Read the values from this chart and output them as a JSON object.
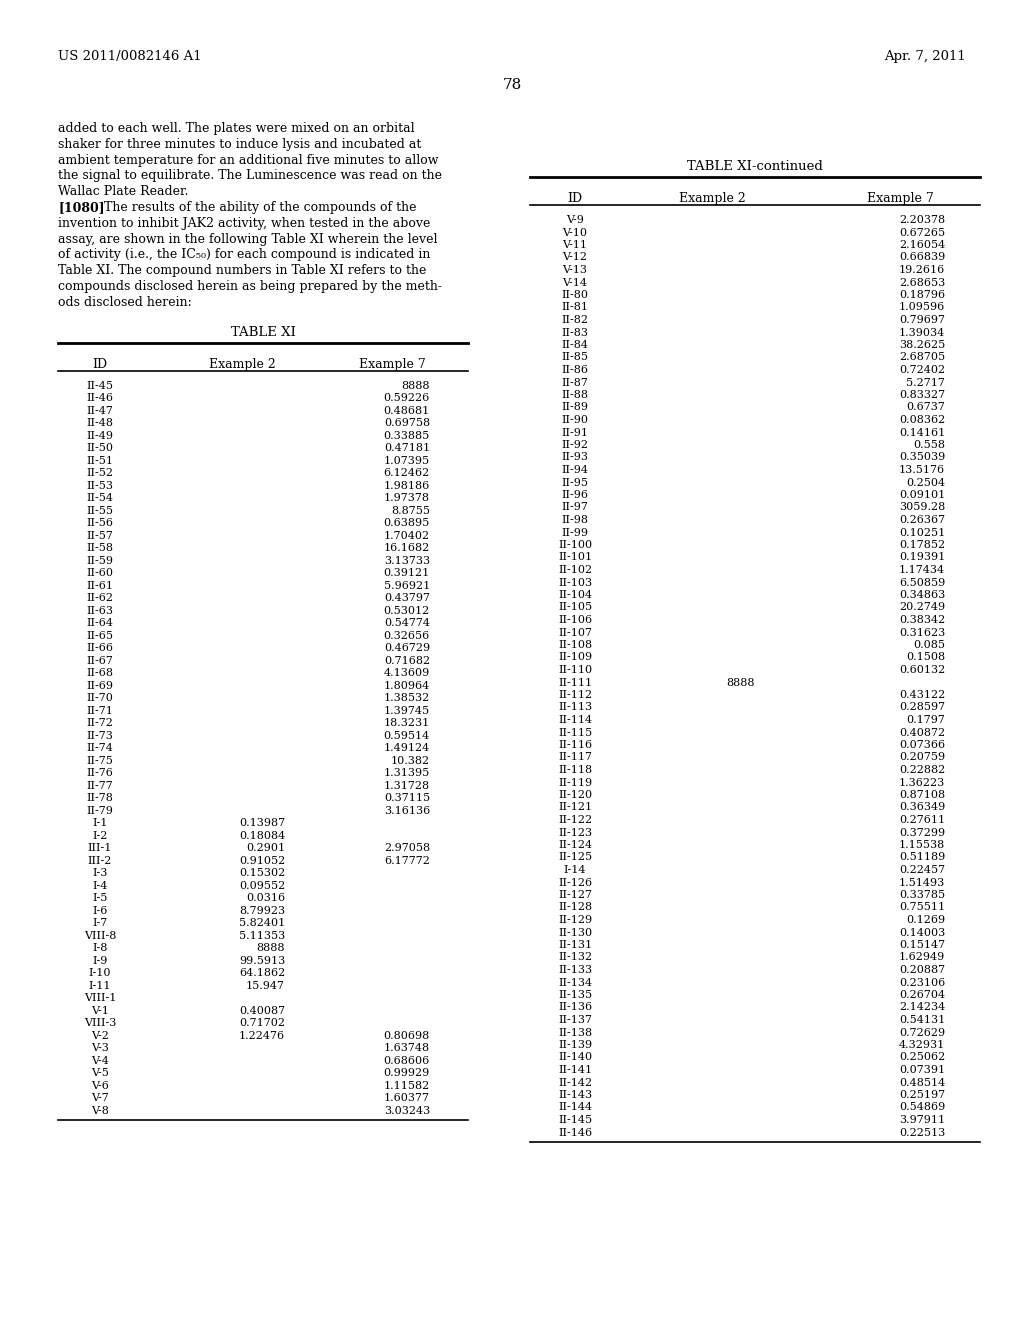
{
  "header_left": "US 2011/0082146 A1",
  "header_right": "Apr. 7, 2011",
  "page_number": "78",
  "body_text": [
    "added to each well. The plates were mixed on an orbital",
    "shaker for three minutes to induce lysis and incubated at",
    "ambient temperature for an additional five minutes to allow",
    "the signal to equilibrate. The Luminescence was read on the",
    "Wallac Plate Reader.",
    "[1080]    The results of the ability of the compounds of the",
    "invention to inhibit JAK2 activity, when tested in the above",
    "assay, are shown in the following Table XI wherein the level",
    "of activity (i.e., the IC₅₀) for each compound is indicated in",
    "Table XI. The compound numbers in Table XI refers to the",
    "compounds disclosed herein as being prepared by the meth-",
    "ods disclosed herein:"
  ],
  "table_title_left": "TABLE XI",
  "table_title_right": "TABLE XI-continued",
  "table_headers": [
    "ID",
    "Example 2",
    "Example 7"
  ],
  "table_left": [
    [
      "II-45",
      "",
      "8888"
    ],
    [
      "II-46",
      "",
      "0.59226"
    ],
    [
      "II-47",
      "",
      "0.48681"
    ],
    [
      "II-48",
      "",
      "0.69758"
    ],
    [
      "II-49",
      "",
      "0.33885"
    ],
    [
      "II-50",
      "",
      "0.47181"
    ],
    [
      "II-51",
      "",
      "1.07395"
    ],
    [
      "II-52",
      "",
      "6.12462"
    ],
    [
      "II-53",
      "",
      "1.98186"
    ],
    [
      "II-54",
      "",
      "1.97378"
    ],
    [
      "II-55",
      "",
      "8.8755"
    ],
    [
      "II-56",
      "",
      "0.63895"
    ],
    [
      "II-57",
      "",
      "1.70402"
    ],
    [
      "II-58",
      "",
      "16.1682"
    ],
    [
      "II-59",
      "",
      "3.13733"
    ],
    [
      "II-60",
      "",
      "0.39121"
    ],
    [
      "II-61",
      "",
      "5.96921"
    ],
    [
      "II-62",
      "",
      "0.43797"
    ],
    [
      "II-63",
      "",
      "0.53012"
    ],
    [
      "II-64",
      "",
      "0.54774"
    ],
    [
      "II-65",
      "",
      "0.32656"
    ],
    [
      "II-66",
      "",
      "0.46729"
    ],
    [
      "II-67",
      "",
      "0.71682"
    ],
    [
      "II-68",
      "",
      "4.13609"
    ],
    [
      "II-69",
      "",
      "1.80964"
    ],
    [
      "II-70",
      "",
      "1.38532"
    ],
    [
      "II-71",
      "",
      "1.39745"
    ],
    [
      "II-72",
      "",
      "18.3231"
    ],
    [
      "II-73",
      "",
      "0.59514"
    ],
    [
      "II-74",
      "",
      "1.49124"
    ],
    [
      "II-75",
      "",
      "10.382"
    ],
    [
      "II-76",
      "",
      "1.31395"
    ],
    [
      "II-77",
      "",
      "1.31728"
    ],
    [
      "II-78",
      "",
      "0.37115"
    ],
    [
      "II-79",
      "",
      "3.16136"
    ],
    [
      "I-1",
      "0.13987",
      ""
    ],
    [
      "I-2",
      "0.18084",
      ""
    ],
    [
      "III-1",
      "0.2901",
      "2.97058"
    ],
    [
      "III-2",
      "0.91052",
      "6.17772"
    ],
    [
      "I-3",
      "0.15302",
      ""
    ],
    [
      "I-4",
      "0.09552",
      ""
    ],
    [
      "I-5",
      "0.0316",
      ""
    ],
    [
      "I-6",
      "8.79923",
      ""
    ],
    [
      "I-7",
      "5.82401",
      ""
    ],
    [
      "VIII-8",
      "5.11353",
      ""
    ],
    [
      "I-8",
      "8888",
      ""
    ],
    [
      "I-9",
      "99.5913",
      ""
    ],
    [
      "I-10",
      "64.1862",
      ""
    ],
    [
      "I-11",
      "15.947",
      ""
    ],
    [
      "VIII-1",
      "",
      ""
    ],
    [
      "V-1",
      "0.40087",
      ""
    ],
    [
      "VIII-3",
      "0.71702",
      ""
    ],
    [
      "V-2",
      "1.22476",
      "0.80698"
    ],
    [
      "V-3",
      "",
      "1.63748"
    ],
    [
      "V-4",
      "",
      "0.68606"
    ],
    [
      "V-5",
      "",
      "0.99929"
    ],
    [
      "V-6",
      "",
      "1.11582"
    ],
    [
      "V-7",
      "",
      "1.60377"
    ],
    [
      "V-8",
      "",
      "3.03243"
    ]
  ],
  "table_right": [
    [
      "V-9",
      "",
      "2.20378"
    ],
    [
      "V-10",
      "",
      "0.67265"
    ],
    [
      "V-11",
      "",
      "2.16054"
    ],
    [
      "V-12",
      "",
      "0.66839"
    ],
    [
      "V-13",
      "",
      "19.2616"
    ],
    [
      "V-14",
      "",
      "2.68653"
    ],
    [
      "II-80",
      "",
      "0.18796"
    ],
    [
      "II-81",
      "",
      "1.09596"
    ],
    [
      "II-82",
      "",
      "0.79697"
    ],
    [
      "II-83",
      "",
      "1.39034"
    ],
    [
      "II-84",
      "",
      "38.2625"
    ],
    [
      "II-85",
      "",
      "2.68705"
    ],
    [
      "II-86",
      "",
      "0.72402"
    ],
    [
      "II-87",
      "",
      "5.2717"
    ],
    [
      "II-88",
      "",
      "0.83327"
    ],
    [
      "II-89",
      "",
      "0.6737"
    ],
    [
      "II-90",
      "",
      "0.08362"
    ],
    [
      "II-91",
      "",
      "0.14161"
    ],
    [
      "II-92",
      "",
      "0.558"
    ],
    [
      "II-93",
      "",
      "0.35039"
    ],
    [
      "II-94",
      "",
      "13.5176"
    ],
    [
      "II-95",
      "",
      "0.2504"
    ],
    [
      "II-96",
      "",
      "0.09101"
    ],
    [
      "II-97",
      "",
      "3059.28"
    ],
    [
      "II-98",
      "",
      "0.26367"
    ],
    [
      "II-99",
      "",
      "0.10251"
    ],
    [
      "II-100",
      "",
      "0.17852"
    ],
    [
      "II-101",
      "",
      "0.19391"
    ],
    [
      "II-102",
      "",
      "1.17434"
    ],
    [
      "II-103",
      "",
      "6.50859"
    ],
    [
      "II-104",
      "",
      "0.34863"
    ],
    [
      "II-105",
      "",
      "20.2749"
    ],
    [
      "II-106",
      "",
      "0.38342"
    ],
    [
      "II-107",
      "",
      "0.31623"
    ],
    [
      "II-108",
      "",
      "0.085"
    ],
    [
      "II-109",
      "",
      "0.1508"
    ],
    [
      "II-110",
      "",
      "0.60132"
    ],
    [
      "II-111",
      "8888",
      ""
    ],
    [
      "II-112",
      "",
      "0.43122"
    ],
    [
      "II-113",
      "",
      "0.28597"
    ],
    [
      "II-114",
      "",
      "0.1797"
    ],
    [
      "II-115",
      "",
      "0.40872"
    ],
    [
      "II-116",
      "",
      "0.07366"
    ],
    [
      "II-117",
      "",
      "0.20759"
    ],
    [
      "II-118",
      "",
      "0.22882"
    ],
    [
      "II-119",
      "",
      "1.36223"
    ],
    [
      "II-120",
      "",
      "0.87108"
    ],
    [
      "II-121",
      "",
      "0.36349"
    ],
    [
      "II-122",
      "",
      "0.27611"
    ],
    [
      "II-123",
      "",
      "0.37299"
    ],
    [
      "II-124",
      "",
      "1.15538"
    ],
    [
      "II-125",
      "",
      "0.51189"
    ],
    [
      "I-14",
      "",
      "0.22457"
    ],
    [
      "II-126",
      "",
      "1.51493"
    ],
    [
      "II-127",
      "",
      "0.33785"
    ],
    [
      "II-128",
      "",
      "0.75511"
    ],
    [
      "II-129",
      "",
      "0.1269"
    ],
    [
      "II-130",
      "",
      "0.14003"
    ],
    [
      "II-131",
      "",
      "0.15147"
    ],
    [
      "II-132",
      "",
      "1.62949"
    ],
    [
      "II-133",
      "",
      "0.20887"
    ],
    [
      "II-134",
      "",
      "0.23106"
    ],
    [
      "II-135",
      "",
      "0.26704"
    ],
    [
      "II-136",
      "",
      "2.14234"
    ],
    [
      "II-137",
      "",
      "0.54131"
    ],
    [
      "II-138",
      "",
      "0.72629"
    ],
    [
      "II-139",
      "",
      "4.32931"
    ],
    [
      "II-140",
      "",
      "0.25062"
    ],
    [
      "II-141",
      "",
      "0.07391"
    ],
    [
      "II-142",
      "",
      "0.48514"
    ],
    [
      "II-143",
      "",
      "0.25197"
    ],
    [
      "II-144",
      "",
      "0.54869"
    ],
    [
      "II-145",
      "",
      "3.97911"
    ],
    [
      "II-146",
      "",
      "0.22513"
    ]
  ],
  "background_color": "#ffffff",
  "text_color": "#000000"
}
